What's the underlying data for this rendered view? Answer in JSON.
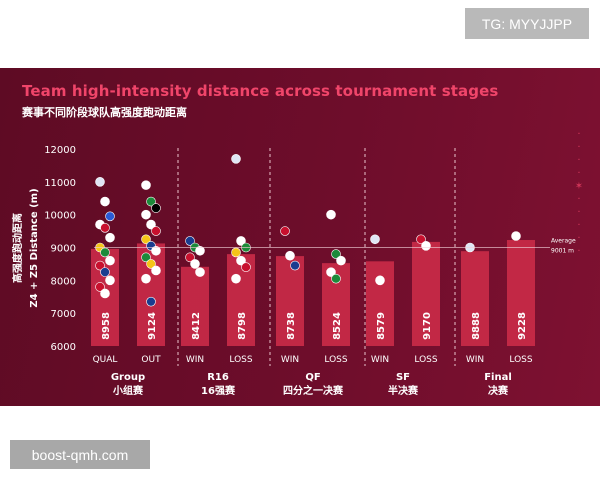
{
  "tag_label": "TG: MYYJJPP",
  "watermark_label": "boost-qmh.com",
  "chart_data": {
    "type": "bar",
    "title": "Team high-intensity distance across tournament stages",
    "subtitle": "赛事不同阶段球队高强度跑动距离",
    "ylabel_cn": "高强度跑动距离",
    "ylabel": "Z4 + Z5 Distance (m)",
    "ylim": [
      6000,
      12000
    ],
    "yticks": [
      6000,
      7000,
      8000,
      9000,
      10000,
      11000,
      12000
    ],
    "average": {
      "label": "Average",
      "value_label": "9001 m",
      "value": 9001
    },
    "groups": [
      {
        "label": "Group",
        "label_cn": "小组赛",
        "bars": [
          {
            "category": "QUAL",
            "value": 8958
          },
          {
            "category": "OUT",
            "value": 9124
          }
        ]
      },
      {
        "label": "R16",
        "label_cn": "16强赛",
        "bars": [
          {
            "category": "WIN",
            "value": 8412
          },
          {
            "category": "LOSS",
            "value": 8798
          }
        ]
      },
      {
        "label": "QF",
        "label_cn": "四分之一决赛",
        "bars": [
          {
            "category": "WIN",
            "value": 8738
          },
          {
            "category": "LOSS",
            "value": 8524
          }
        ]
      },
      {
        "label": "SF",
        "label_cn": "半决赛",
        "bars": [
          {
            "category": "WIN",
            "value": 8579
          },
          {
            "category": "LOSS",
            "value": 9170
          }
        ]
      },
      {
        "label": "Final",
        "label_cn": "决赛",
        "bars": [
          {
            "category": "WIN",
            "value": 8888
          },
          {
            "category": "LOSS",
            "value": 9228
          }
        ]
      }
    ],
    "team_points": [
      [
        [
          11000,
          "#dfe6f5"
        ],
        [
          10400,
          "#ffffff"
        ],
        [
          9950,
          "#2a5bd7"
        ],
        [
          9700,
          "#ffffff"
        ],
        [
          9600,
          "#c8102e"
        ],
        [
          9300,
          "#ffffff"
        ],
        [
          9000,
          "#f5c518"
        ],
        [
          8850,
          "#1c8a3a"
        ],
        [
          8600,
          "#ffffff"
        ],
        [
          8450,
          "#c8102e"
        ],
        [
          8250,
          "#1a3c8f"
        ],
        [
          8000,
          "#ffffff"
        ],
        [
          7800,
          "#c8102e"
        ],
        [
          7600,
          "#ffffff"
        ]
      ],
      [
        [
          10900,
          "#ffffff"
        ],
        [
          10400,
          "#1c8a3a"
        ],
        [
          10200,
          "#000000"
        ],
        [
          10000,
          "#ffffff"
        ],
        [
          9700,
          "#ffffff"
        ],
        [
          9500,
          "#c8102e"
        ],
        [
          9250,
          "#f5c518"
        ],
        [
          9050,
          "#1a3c8f"
        ],
        [
          8900,
          "#ffffff"
        ],
        [
          8700,
          "#1c8a3a"
        ],
        [
          8500,
          "#f5c518"
        ],
        [
          8300,
          "#ffffff"
        ],
        [
          8050,
          "#ffffff"
        ],
        [
          7350,
          "#1a3c8f"
        ]
      ],
      [
        [
          9200,
          "#1a3c8f"
        ],
        [
          9000,
          "#1c8a3a"
        ],
        [
          8900,
          "#ffffff"
        ],
        [
          8700,
          "#c8102e"
        ],
        [
          8500,
          "#ffffff"
        ],
        [
          8250,
          "#ffffff"
        ]
      ],
      [
        [
          11700,
          "#dfe6f5"
        ],
        [
          9200,
          "#ffffff"
        ],
        [
          9000,
          "#1c8a3a"
        ],
        [
          8850,
          "#f5c518"
        ],
        [
          8600,
          "#ffffff"
        ],
        [
          8400,
          "#c8102e"
        ],
        [
          8050,
          "#ffffff"
        ]
      ],
      [
        [
          9500,
          "#c8102e"
        ],
        [
          8750,
          "#ffffff"
        ],
        [
          8450,
          "#1a3c8f"
        ]
      ],
      [
        [
          10000,
          "#ffffff"
        ],
        [
          8800,
          "#1c8a3a"
        ],
        [
          8600,
          "#ffffff"
        ],
        [
          8250,
          "#ffffff"
        ],
        [
          8050,
          "#1c8a3a"
        ]
      ],
      [
        [
          9250,
          "#dfe6f5"
        ],
        [
          8000,
          "#ffffff"
        ]
      ],
      [
        [
          9250,
          "#c8102e"
        ],
        [
          9050,
          "#ffffff"
        ]
      ],
      [
        [
          9000,
          "#dfe6f5"
        ]
      ],
      [
        [
          9350,
          "#ffffff"
        ]
      ]
    ]
  }
}
